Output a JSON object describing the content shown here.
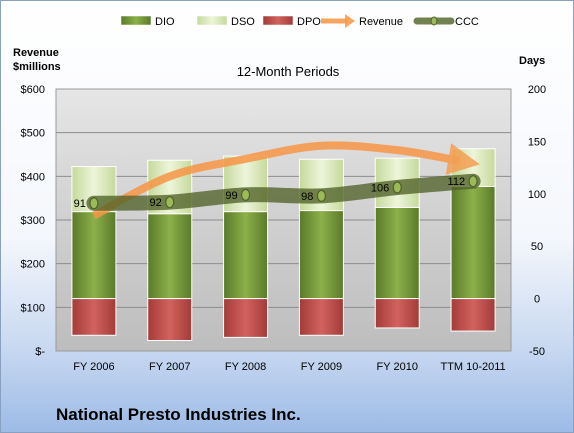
{
  "company_name": "National Presto Industries Inc.",
  "chart_data": {
    "type": "bar",
    "title": "12-Month Periods",
    "ylabel": "Revenue\n$millions",
    "y2label": "Days",
    "categories": [
      "FY 2006",
      "FY 2007",
      "FY 2008",
      "FY 2009",
      "FY 2010",
      "TTM 10-2011"
    ],
    "ylim": [
      0,
      600
    ],
    "y2lim": [
      -50,
      200
    ],
    "y_ticks": [
      "$-",
      "$100",
      "$200",
      "$300",
      "$400",
      "$500",
      "$600"
    ],
    "y2_ticks": [
      "-50",
      "0",
      "50",
      "100",
      "150",
      "200"
    ],
    "grid": true,
    "legend": "top",
    "series": [
      {
        "name": "DIO",
        "axis": "days",
        "values": [
          83,
          81,
          83,
          84,
          87,
          107
        ],
        "color": "#77933c"
      },
      {
        "name": "DSO",
        "axis": "days",
        "values": [
          43,
          51,
          53,
          49,
          47,
          36
        ],
        "color": "#d7e4bd"
      },
      {
        "name": "DPO",
        "axis": "days",
        "values": [
          -35,
          -40,
          -37,
          -35,
          -28,
          -31
        ],
        "color": "#c0504d"
      },
      {
        "name": "Revenue",
        "axis": "revenue",
        "values": [
          310,
          400,
          440,
          470,
          460,
          430
        ],
        "color": "#f79646"
      },
      {
        "name": "CCC",
        "axis": "days",
        "values": [
          91,
          92,
          99,
          98,
          106,
          112
        ],
        "labels": [
          "91",
          "92",
          "99",
          "98",
          "106",
          "112"
        ],
        "color": "#4f6228"
      }
    ]
  }
}
